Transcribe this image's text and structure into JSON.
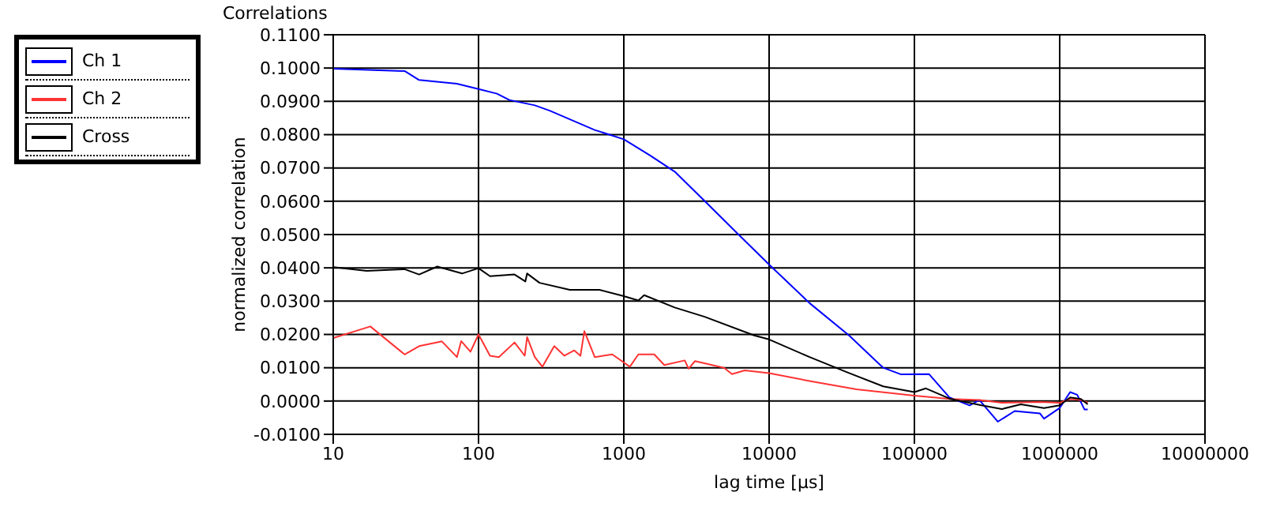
{
  "chart_data": {
    "type": "line",
    "title": "Correlations",
    "xlabel": "lag time [µs]",
    "ylabel": "normalized correlation",
    "log": "x",
    "grid": true,
    "legend": "left",
    "marker": "none",
    "line_style": "solid",
    "xlim": [
      10,
      10000000
    ],
    "xticks": [
      10,
      100,
      1000,
      10000,
      100000,
      1000000,
      10000000
    ],
    "ylim": [
      -0.01,
      0.11
    ],
    "yticks": [
      {
        "value": -0.01,
        "label": "-0.0100"
      },
      {
        "value": 0,
        "label": "0.0000"
      },
      {
        "value": 0.01,
        "label": "0.0100"
      },
      {
        "value": 0.02,
        "label": "0.0200"
      },
      {
        "value": 0.03,
        "label": "0.0300"
      },
      {
        "value": 0.04,
        "label": "0.0400"
      },
      {
        "value": 0.05,
        "label": "0.0500"
      },
      {
        "value": 0.06,
        "label": "0.0600"
      },
      {
        "value": 0.07,
        "label": "0.0700"
      },
      {
        "value": 0.08,
        "label": "0.0800"
      },
      {
        "value": 0.09,
        "label": "0.0900"
      },
      {
        "value": 0.1,
        "label": "0.1000"
      },
      {
        "value": 0.11,
        "label": "0.1100"
      }
    ],
    "series": [
      {
        "name": "Ch 1",
        "color": "#0000ff",
        "x": [
          10,
          31,
          39,
          71,
          100,
          134,
          163,
          244,
          309,
          631,
          1000,
          1510,
          2240,
          3600,
          6300,
          10000,
          19000,
          35500,
          61000,
          81000,
          126000,
          174000,
          240000,
          280000,
          375000,
          490000,
          730000,
          780000,
          1000000,
          1180000,
          1320000,
          1480000,
          1560000
        ],
        "values": [
          0.0998,
          0.0991,
          0.0964,
          0.0953,
          0.0937,
          0.0923,
          0.0904,
          0.0888,
          0.0872,
          0.0814,
          0.0786,
          0.0738,
          0.0689,
          0.0601,
          0.0496,
          0.041,
          0.0294,
          0.0197,
          0.01,
          0.008,
          0.0081,
          0.0011,
          -0.0013,
          0.0003,
          -0.0062,
          -0.003,
          -0.0037,
          -0.0053,
          -0.0021,
          0.0027,
          0.0019,
          -0.0025,
          -0.0025
        ]
      },
      {
        "name": "Ch 2",
        "color": "#ff3333",
        "x": [
          10,
          18,
          31,
          39,
          56,
          71,
          76,
          88,
          100,
          120,
          138,
          177,
          208,
          216,
          244,
          275,
          332,
          390,
          456,
          503,
          535,
          631,
          833,
          1100,
          1260,
          1620,
          1900,
          2630,
          2790,
          3090,
          4900,
          5550,
          6800,
          10000,
          19000,
          40000,
          100000,
          178000,
          280000,
          400000,
          730000,
          1000000,
          1180000,
          1400000,
          1560000
        ],
        "values": [
          0.0189,
          0.0224,
          0.014,
          0.0165,
          0.0179,
          0.0132,
          0.018,
          0.0148,
          0.02,
          0.0136,
          0.0132,
          0.0176,
          0.0136,
          0.0192,
          0.0132,
          0.0103,
          0.0165,
          0.0136,
          0.0152,
          0.0136,
          0.021,
          0.0132,
          0.014,
          0.0103,
          0.014,
          0.014,
          0.0108,
          0.0122,
          0.0097,
          0.012,
          0.01,
          0.0081,
          0.0092,
          0.0084,
          0.006,
          0.0035,
          0.0016,
          0.0006,
          0.0003,
          -0.0005,
          -0.0003,
          -0.0005,
          0.0006,
          0.0003,
          -0.0005
        ]
      },
      {
        "name": "Cross",
        "color": "#000000",
        "x": [
          10,
          17,
          31,
          39,
          52,
          77,
          100,
          120,
          177,
          210,
          216,
          263,
          425,
          680,
          1000,
          1260,
          1380,
          2240,
          3600,
          7900,
          10000,
          19000,
          35500,
          61000,
          100000,
          120000,
          178000,
          290000,
          400000,
          540000,
          780000,
          1000000,
          1180000,
          1400000,
          1560000
        ],
        "values": [
          0.0402,
          0.0391,
          0.0396,
          0.038,
          0.0404,
          0.0383,
          0.0399,
          0.0375,
          0.038,
          0.0359,
          0.0383,
          0.0355,
          0.0334,
          0.0334,
          0.0315,
          0.0302,
          0.0318,
          0.0281,
          0.0253,
          0.0197,
          0.0185,
          0.0132,
          0.0084,
          0.0044,
          0.0027,
          0.0038,
          0.0006,
          -0.0013,
          -0.0024,
          -0.001,
          -0.0021,
          -0.0013,
          0.0011,
          0.0006,
          -0.001
        ]
      }
    ]
  }
}
